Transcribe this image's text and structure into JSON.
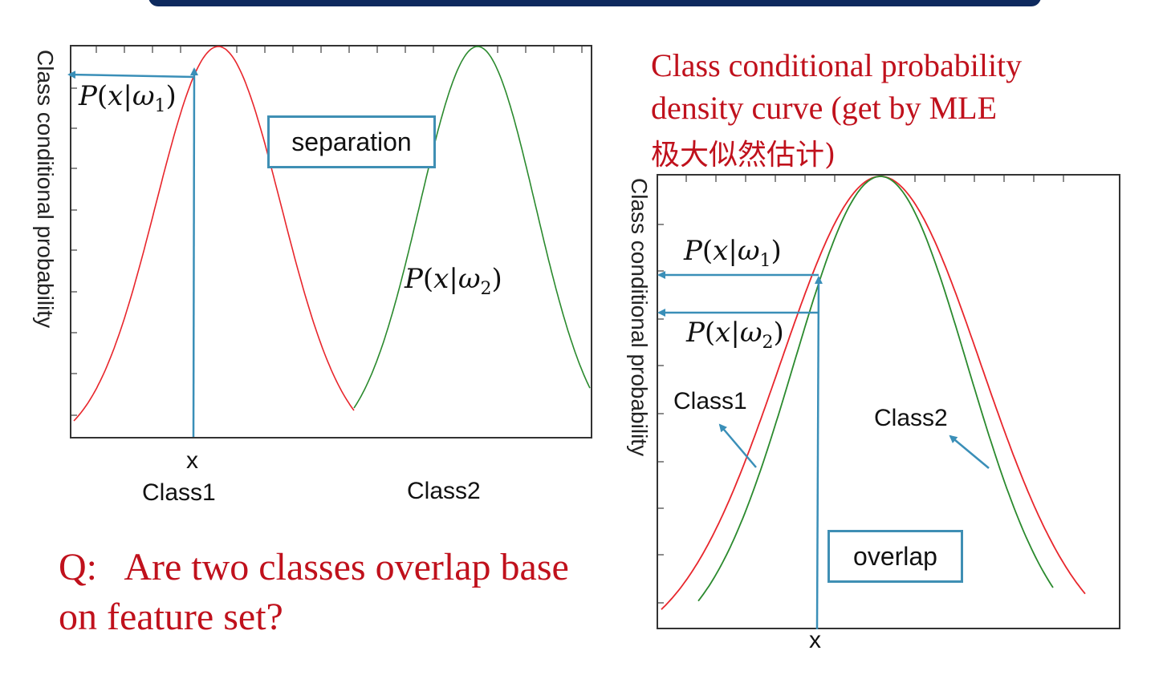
{
  "left_plot": {
    "ylabel": "Class conditional probability",
    "p1_label": {
      "P": "P",
      "open": "(",
      "x": "x",
      "bar": "|",
      "omega": "ω",
      "sub": "1",
      "close": ")"
    },
    "p2_label": {
      "P": "P",
      "open": "(",
      "x": "x",
      "bar": "|",
      "omega": "ω",
      "sub": "2",
      "close": ")"
    },
    "box_label": "separation",
    "x_marker": "x",
    "class1": "Class1",
    "class2": "Class2",
    "colors": {
      "class1": "#e8262c",
      "class2": "#2b8a2e",
      "arrow": "#3a8fb8"
    }
  },
  "right_plot": {
    "title_line1": "Class conditional probability",
    "title_line2": "density curve  (get by MLE",
    "title_line3": "极大似然估计)",
    "ylabel": "Class conditional probability",
    "p1_label": {
      "P": "P",
      "open": "(",
      "x": "x",
      "bar": "|",
      "omega": "ω",
      "sub": "1",
      "close": ")"
    },
    "p2_label": {
      "P": "P",
      "open": "(",
      "x": "x",
      "bar": "|",
      "omega": "ω",
      "sub": "2",
      "close": ")"
    },
    "class1": "Class1",
    "class2": "Class2",
    "box_label": "overlap",
    "x_marker": "x"
  },
  "question": {
    "line1": "Q:   Are two classes overlap base",
    "line2": "on feature set?"
  }
}
